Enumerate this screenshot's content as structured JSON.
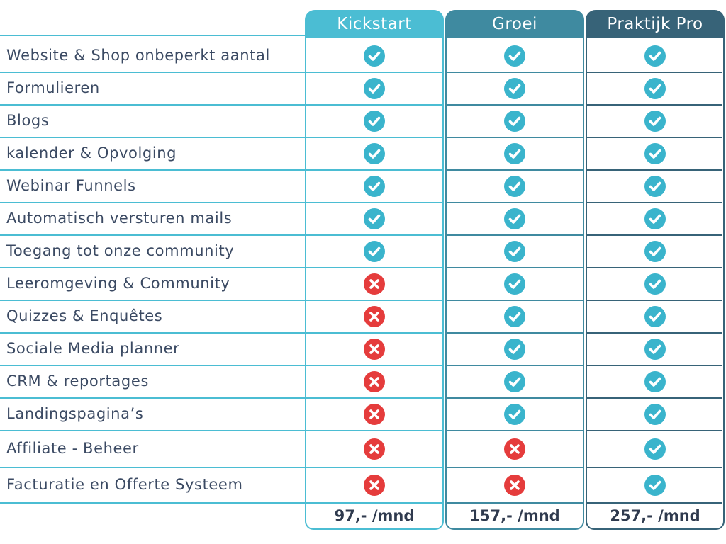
{
  "plans": [
    {
      "name": "Kickstart",
      "price": "97,- /mnd",
      "color": "#4bbdd3"
    },
    {
      "name": "Groei",
      "price": "157,- /mnd",
      "color": "#3f8aa0"
    },
    {
      "name": "Praktijk Pro",
      "price": "257,- /mnd",
      "color": "#376378"
    }
  ],
  "colors": {
    "check": "#3ab4cc",
    "cross": "#e53c3c",
    "text": "#3b4a63"
  },
  "icons": {
    "included": "check-circle-icon",
    "excluded": "x-circle-icon"
  },
  "features": [
    {
      "label": "Website & Shop onbeperkt aantal",
      "included": [
        true,
        true,
        true
      ]
    },
    {
      "label": "Formulieren",
      "included": [
        true,
        true,
        true
      ]
    },
    {
      "label": "Blogs",
      "included": [
        true,
        true,
        true
      ]
    },
    {
      "label": "kalender & Opvolging",
      "included": [
        true,
        true,
        true
      ]
    },
    {
      "label": "Webinar Funnels",
      "included": [
        true,
        true,
        true
      ]
    },
    {
      "label": "Automatisch versturen mails",
      "included": [
        true,
        true,
        true
      ]
    },
    {
      "label": "Toegang tot onze community",
      "included": [
        true,
        true,
        true
      ]
    },
    {
      "label": "Leeromgeving & Community",
      "included": [
        false,
        true,
        true
      ]
    },
    {
      "label": "Quizzes & Enquêtes",
      "included": [
        false,
        true,
        true
      ]
    },
    {
      "label": "Sociale Media planner",
      "included": [
        false,
        true,
        true
      ]
    },
    {
      "label": "CRM & reportages",
      "included": [
        false,
        true,
        true
      ]
    },
    {
      "label": "Landingspagina’s",
      "included": [
        false,
        true,
        true
      ]
    },
    {
      "label": "Affiliate - Beheer",
      "included": [
        false,
        false,
        true
      ]
    },
    {
      "label": "Facturatie en Offerte Systeem",
      "included": [
        false,
        false,
        true
      ]
    }
  ]
}
